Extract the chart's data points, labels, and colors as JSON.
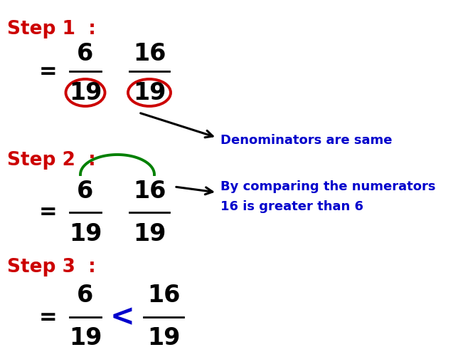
{
  "bg_color": "#ffffff",
  "step_color": "#cc0000",
  "black_color": "#000000",
  "blue_color": "#0000cc",
  "green_color": "#008000",
  "red_circle_color": "#cc0000",
  "step1_label": "Step 1  :",
  "step2_label": "Step 2  :",
  "step3_label": "Step 3  :",
  "denom_note": "Denominators are same",
  "numer_note1": "By comparing the numerators",
  "numer_note2": "16 is greater than 6",
  "num1_top": "6",
  "num1_bot": "19",
  "num2_top": "16",
  "num2_bot": "19",
  "less_than": "<",
  "eq_sign": "="
}
